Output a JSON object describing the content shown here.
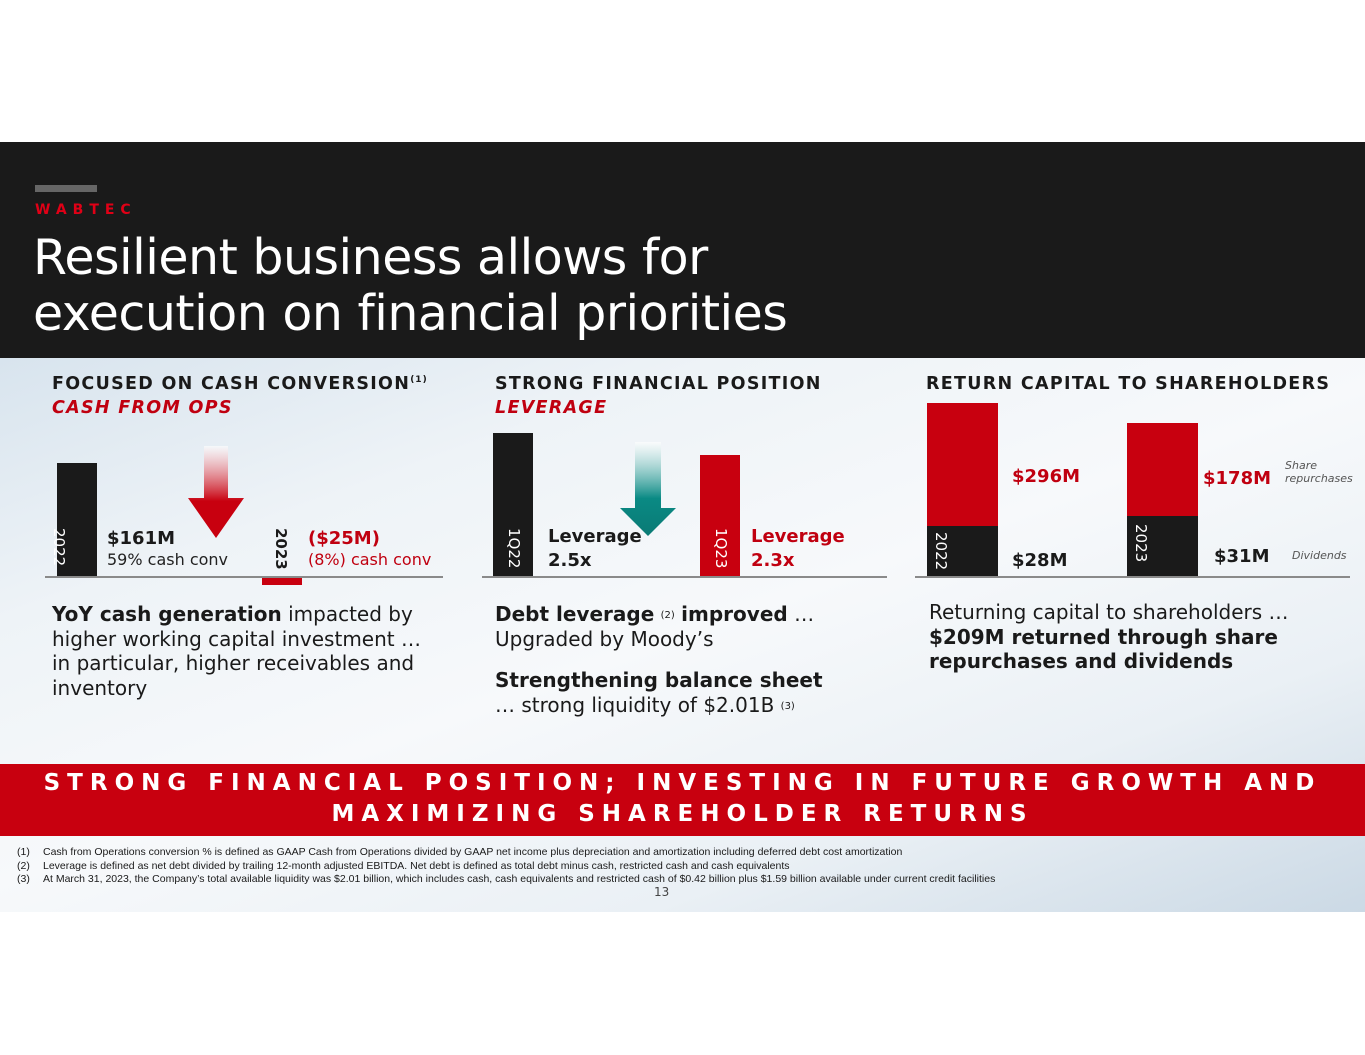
{
  "header": {
    "brand": "WABTEC",
    "title_line1": "Resilient business allows for",
    "title_line2": "execution on financial priorities"
  },
  "cash": {
    "title": "FOCUSED ON CASH CONVERSION",
    "title_note": "(1)",
    "subtitle": "CASH FROM OPS",
    "bar_2022_label": "2022",
    "bar_2023_label": "2023",
    "value_2022": "$161M",
    "conv_2022": "59% cash conv",
    "value_2023": "($25M)",
    "conv_2023": "(8%) cash conv",
    "para_bold": "YoY cash generation",
    "para_rest": " impacted by higher working capital investment … in particular, higher receivables and inventory",
    "arrow": "down-arrow-icon"
  },
  "leverage": {
    "title": "STRONG FINANCIAL POSITION",
    "subtitle": "LEVERAGE",
    "bar_1q22_label": "1Q22",
    "bar_1q23_label": "1Q23",
    "lev_1q22_line1": "Leverage",
    "lev_1q22_line2": "2.5x",
    "lev_1q23_line1": "Leverage",
    "lev_1q23_line2": "2.3x",
    "p1_bold": "Debt leverage",
    "p1_note": "(2)",
    "p1_bold2": "improved",
    "p1_rest": " …",
    "p1_line2": "Upgraded by Moody’s",
    "p2_bold": "Strengthening balance sheet",
    "p2_line2": "… strong liquidity of $2.01B",
    "p2_note": "(3)",
    "arrow": "down-arrow-icon"
  },
  "capital": {
    "title": "RETURN CAPITAL TO SHAREHOLDERS",
    "bar_2022_label": "2022",
    "bar_2023_label": "2023",
    "repurch_2022": "$296M",
    "div_2022": "$28M",
    "repurch_2023": "$178M",
    "div_2023": "$31M",
    "legend_share": "Share repurchases",
    "legend_div": "Dividends",
    "para_line1": "Returning capital to shareholders …",
    "para_bold": "$209M returned through share repurchases and dividends"
  },
  "banner": {
    "line1": "STRONG FINANCIAL POSITION; INVESTING IN FUTURE GROWTH AND",
    "line2": "MAXIMIZING SHAREHOLDER RETURNS"
  },
  "footnotes": [
    {
      "n": "(1)",
      "text": "Cash from Operations conversion % is defined as GAAP Cash from Operations divided by GAAP net income plus depreciation and amortization including deferred debt cost amortization"
    },
    {
      "n": "(2)",
      "text": "Leverage is defined as net debt divided by trailing 12-month adjusted EBITDA. Net debt is defined as total debt minus cash, restricted cash and cash equivalents"
    },
    {
      "n": "(3)",
      "text": "At March 31, 2023, the Company’s total available liquidity was $2.01 billion, which includes cash, cash equivalents and restricted cash of $0.42 billion plus $1.59 billion available under current credit facilities"
    }
  ],
  "page_number": "13",
  "colors": {
    "brand_red": "#c8000f",
    "dark": "#1a1a1a",
    "teal": "#0a8a84"
  },
  "chart_data": [
    {
      "type": "bar",
      "title": "CASH FROM OPS",
      "categories": [
        "2022",
        "2023"
      ],
      "values": [
        161,
        -25
      ],
      "unit": "$M"
    },
    {
      "type": "bar",
      "title": "LEVERAGE",
      "categories": [
        "1Q22",
        "1Q23"
      ],
      "values": [
        2.5,
        2.3
      ],
      "unit": "x"
    },
    {
      "type": "bar",
      "title": "RETURN CAPITAL TO SHAREHOLDERS",
      "categories": [
        "2022",
        "2023"
      ],
      "series": [
        {
          "name": "Share repurchases",
          "values": [
            296,
            178
          ]
        },
        {
          "name": "Dividends",
          "values": [
            28,
            31
          ]
        }
      ],
      "unit": "$M"
    }
  ]
}
